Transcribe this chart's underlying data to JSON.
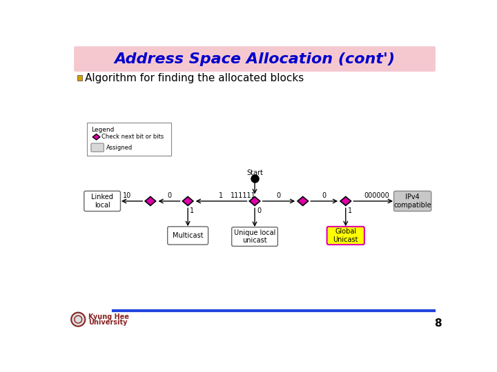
{
  "title": "Address Space Allocation (cont')",
  "title_bg": "#f5c8d0",
  "title_color": "#0000cc",
  "subtitle": "Algorithm for finding the allocated blocks",
  "subtitle_bullet_color": "#d4a000",
  "bg_color": "#ffffff",
  "page_number": "8",
  "footer_line_color": "#2244dd",
  "diamond_color": "#dd00aa",
  "diamond_edge": "#000000",
  "global_unicast_fill": "#ffff00",
  "global_unicast_edge": "#dd00aa",
  "ipv4_fill": "#c8c8c8",
  "ipv4_edge": "#888888",
  "linked_fill": "#ffffff",
  "linked_edge": "#666666",
  "multicast_fill": "#ffffff",
  "multicast_edge": "#666666",
  "unique_fill": "#ffffff",
  "unique_edge": "#666666",
  "start_dot_color": "#000000",
  "arrow_color": "#000000",
  "legend_border": "#888888",
  "legend_diamond_color": "#dd00aa",
  "legend_box_fill": "#d8d8d8",
  "legend_box_edge": "#888888",
  "kyunghee_color": "#882222"
}
